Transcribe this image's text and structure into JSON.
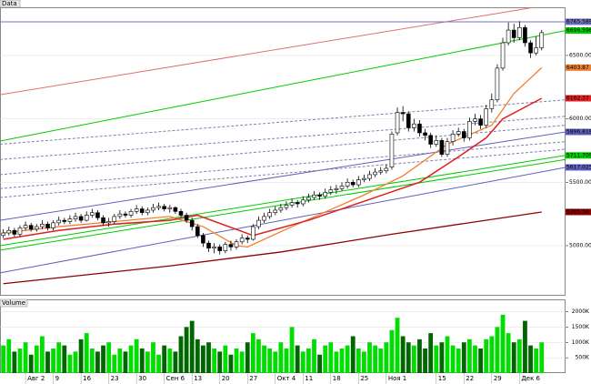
{
  "chart_data": [
    {
      "type": "candlestick",
      "title": "Data",
      "xlim": [
        -0.6,
        101.3
      ],
      "ylim": [
        4605,
        6880
      ],
      "yticks": [
        {
          "value": 5000,
          "label": "5000.00"
        },
        {
          "value": 5500,
          "label": "5500.00"
        },
        {
          "value": 6000,
          "label": "6000.00"
        },
        {
          "value": 6500,
          "label": "6500.00"
        }
      ],
      "up_color": "#ffffff",
      "down_color": "#000000",
      "open": [
        5080,
        5100,
        5120,
        5090,
        5140,
        5160,
        5130,
        5150,
        5170,
        5140,
        5180,
        5200,
        5190,
        5210,
        5230,
        5200,
        5240,
        5260,
        5220,
        5180,
        5190,
        5230,
        5250,
        5240,
        5270,
        5290,
        5260,
        5280,
        5300,
        5310,
        5290,
        5300,
        5270,
        5240,
        5200,
        5150,
        5080,
        5020,
        4980,
        4990,
        4960,
        5010,
        4990,
        5030,
        5060,
        5050,
        5150,
        5200,
        5230,
        5260,
        5280,
        5300,
        5320,
        5340,
        5330,
        5360,
        5380,
        5400,
        5390,
        5420,
        5440,
        5450,
        5470,
        5500,
        5480,
        5520,
        5530,
        5560,
        5580,
        5590,
        5620,
        5890,
        6050,
        6040,
        5930,
        5960,
        5890,
        5870,
        5800,
        5830,
        5720,
        5820,
        5880,
        5900,
        5850,
        5980,
        6000,
        5950,
        6080,
        6150,
        6400,
        6600,
        6700,
        6640,
        6720,
        6600,
        6520,
        6560
      ],
      "high": [
        5130,
        5150,
        5140,
        5160,
        5190,
        5180,
        5170,
        5200,
        5190,
        5200,
        5230,
        5220,
        5240,
        5260,
        5250,
        5270,
        5290,
        5280,
        5240,
        5220,
        5250,
        5280,
        5270,
        5290,
        5320,
        5310,
        5300,
        5330,
        5340,
        5330,
        5320,
        5310,
        5290,
        5260,
        5220,
        5170,
        5100,
        5040,
        5020,
        5010,
        5030,
        5040,
        5050,
        5090,
        5080,
        5170,
        5230,
        5260,
        5290,
        5310,
        5330,
        5350,
        5370,
        5360,
        5390,
        5410,
        5430,
        5420,
        5450,
        5470,
        5480,
        5500,
        5530,
        5520,
        5550,
        5560,
        5590,
        5610,
        5620,
        5640,
        5900,
        6090,
        6100,
        6060,
        6000,
        5990,
        5920,
        5890,
        5870,
        5850,
        5850,
        5910,
        5930,
        5920,
        6010,
        6040,
        6030,
        6110,
        6200,
        6430,
        6640,
        6760,
        6750,
        6770,
        6740,
        6620,
        6650,
        6700
      ],
      "low": [
        5060,
        5080,
        5070,
        5070,
        5120,
        5110,
        5110,
        5130,
        5120,
        5120,
        5160,
        5170,
        5170,
        5190,
        5180,
        5190,
        5220,
        5200,
        5160,
        5150,
        5170,
        5210,
        5220,
        5220,
        5250,
        5240,
        5240,
        5260,
        5280,
        5270,
        5260,
        5250,
        5220,
        5180,
        5120,
        5060,
        4990,
        4950,
        4940,
        4930,
        4940,
        4960,
        4970,
        5010,
        5020,
        5040,
        5130,
        5180,
        5210,
        5240,
        5260,
        5280,
        5300,
        5300,
        5310,
        5340,
        5360,
        5360,
        5370,
        5400,
        5410,
        5430,
        5450,
        5460,
        5460,
        5500,
        5510,
        5540,
        5560,
        5570,
        5600,
        5870,
        5980,
        5900,
        5900,
        5860,
        5830,
        5770,
        5780,
        5700,
        5700,
        5790,
        5860,
        5820,
        5830,
        5950,
        5920,
        5930,
        6050,
        6130,
        6380,
        6580,
        6600,
        6620,
        6570,
        6480,
        6500,
        6540
      ],
      "close": [
        5100,
        5120,
        5090,
        5140,
        5160,
        5130,
        5150,
        5170,
        5140,
        5180,
        5200,
        5190,
        5210,
        5230,
        5200,
        5240,
        5260,
        5220,
        5180,
        5190,
        5230,
        5250,
        5240,
        5270,
        5290,
        5260,
        5280,
        5300,
        5310,
        5290,
        5300,
        5270,
        5240,
        5200,
        5150,
        5080,
        5020,
        4980,
        4990,
        4960,
        5010,
        4990,
        5030,
        5060,
        5050,
        5150,
        5200,
        5230,
        5260,
        5280,
        5300,
        5320,
        5340,
        5330,
        5360,
        5380,
        5400,
        5390,
        5420,
        5440,
        5450,
        5470,
        5500,
        5480,
        5520,
        5530,
        5560,
        5580,
        5590,
        5610,
        5880,
        6050,
        6040,
        5930,
        5960,
        5890,
        5870,
        5800,
        5830,
        5720,
        5820,
        5880,
        5900,
        5850,
        5980,
        6000,
        5950,
        6080,
        6150,
        6400,
        6600,
        6700,
        6640,
        6720,
        6600,
        6520,
        6560,
        6680
      ],
      "moving_averages": [
        {
          "color": "#f08030",
          "x": [
            0,
            10,
            20,
            30,
            36,
            42,
            44,
            52,
            65,
            72,
            80,
            88,
            92,
            97
          ],
          "values": [
            5100,
            5150,
            5190,
            5230,
            5150,
            5000,
            4990,
            5150,
            5400,
            5550,
            5800,
            5950,
            6200,
            6403.87
          ]
        },
        {
          "color": "#e02020",
          "x": [
            0,
            10,
            20,
            30,
            35,
            45,
            55,
            65,
            75,
            82,
            87,
            90,
            97
          ],
          "values": [
            5050,
            5120,
            5170,
            5200,
            5240,
            5080,
            5200,
            5350,
            5500,
            5700,
            5850,
            6000,
            6162.37
          ]
        },
        {
          "color": "#900000",
          "x": [
            0,
            30,
            50,
            70,
            97
          ],
          "values": [
            4700,
            4840,
            4950,
            5090,
            5265.56
          ]
        }
      ],
      "trend_lines": [
        {
          "color": "#e07070",
          "dashed": false,
          "label": false,
          "x": [
            -0.6,
            101.3
          ],
          "values": [
            6190,
            6920
          ]
        },
        {
          "color": "#00cc00",
          "dashed": false,
          "label": true,
          "x": [
            -0.6,
            101.3
          ],
          "values": [
            5825,
            6696.596
          ]
        },
        {
          "color": "#7070c0",
          "dashed": false,
          "label": true,
          "x": [
            -0.6,
            101.3
          ],
          "values": [
            6765.5898,
            6765.5898
          ]
        },
        {
          "color": "#6060c0",
          "dashed": false,
          "label": true,
          "x": [
            -0.6,
            101.3
          ],
          "values": [
            5200,
            5896.8186
          ]
        },
        {
          "color": "#6060c0",
          "dashed": false,
          "label": true,
          "x": [
            -0.6,
            101.3
          ],
          "values": [
            4785,
            5617.0256
          ]
        },
        {
          "color": "#00cc00",
          "dashed": false,
          "label": true,
          "x": [
            -0.6,
            101.3
          ],
          "values": [
            5000,
            5711.7091
          ]
        },
        {
          "color": "#00cc00",
          "dashed": false,
          "label": false,
          "x": [
            -0.6,
            101.3
          ],
          "values": [
            4965,
            5680
          ]
        },
        {
          "color": "#8080b0",
          "dashed": true,
          "label": false,
          "x": [
            -0.6,
            101.3
          ],
          "values": [
            5800,
            6150
          ]
        },
        {
          "color": "#8080b0",
          "dashed": true,
          "label": false,
          "x": [
            -0.6,
            101.3
          ],
          "values": [
            5680,
            6020
          ]
        },
        {
          "color": "#8080b0",
          "dashed": true,
          "label": false,
          "x": [
            -0.6,
            101.3
          ],
          "values": [
            5560,
            5950
          ]
        },
        {
          "color": "#8080b0",
          "dashed": true,
          "label": false,
          "x": [
            -0.6,
            101.3
          ],
          "values": [
            5450,
            5820
          ]
        },
        {
          "color": "#8080b0",
          "dashed": true,
          "label": false,
          "x": [
            -0.6,
            101.3
          ],
          "values": [
            5380,
            5760
          ]
        }
      ]
    },
    {
      "type": "bar",
      "title": "Volume",
      "xlim": [
        -0.6,
        101.3
      ],
      "ylim": [
        0,
        2400
      ],
      "yticks": [
        {
          "value": 500,
          "label": "500K"
        },
        {
          "value": 1000,
          "label": "1000K"
        },
        {
          "value": 1500,
          "label": "1500K"
        },
        {
          "value": 2000,
          "label": "2000K"
        }
      ],
      "up_color": "#00dd00",
      "down_color": "#006600",
      "values": [
        900,
        1100,
        700,
        800,
        1000,
        600,
        900,
        1200,
        700,
        800,
        1000,
        900,
        600,
        700,
        1100,
        1300,
        800,
        700,
        900,
        1000,
        600,
        800,
        700,
        900,
        1100,
        800,
        700,
        1000,
        600,
        900,
        800,
        700,
        1200,
        1500,
        1700,
        1100,
        900,
        1000,
        800,
        700,
        900,
        600,
        800,
        700,
        1000,
        1300,
        1100,
        900,
        800,
        700,
        1000,
        800,
        1500,
        900,
        700,
        800,
        1100,
        600,
        900,
        1000,
        700,
        800,
        900,
        1200,
        800,
        700,
        1000,
        900,
        800,
        1000,
        1400,
        1800,
        1200,
        1000,
        900,
        1100,
        800,
        1300,
        900,
        1000,
        1200,
        900,
        800,
        1000,
        1100,
        900,
        800,
        1100,
        1200,
        1500,
        1900,
        1300,
        1000,
        1100,
        1700,
        900,
        800,
        1000
      ],
      "xticks": [
        {
          "value": 4,
          "label": "Авг 2"
        },
        {
          "value": 9,
          "label": "9"
        },
        {
          "value": 14,
          "label": "16"
        },
        {
          "value": 19,
          "label": "23"
        },
        {
          "value": 24,
          "label": "30"
        },
        {
          "value": 29,
          "label": "Сен 6"
        },
        {
          "value": 34,
          "label": "13"
        },
        {
          "value": 39,
          "label": "20"
        },
        {
          "value": 44,
          "label": "27"
        },
        {
          "value": 49,
          "label": "Окт 4"
        },
        {
          "value": 54,
          "label": "11"
        },
        {
          "value": 59,
          "label": "18"
        },
        {
          "value": 64,
          "label": "25"
        },
        {
          "value": 69,
          "label": "Ноя 1"
        },
        {
          "value": 78,
          "label": "15"
        },
        {
          "value": 83,
          "label": "22"
        },
        {
          "value": 88,
          "label": "29"
        },
        {
          "value": 93,
          "label": "Дек 6"
        }
      ]
    }
  ]
}
